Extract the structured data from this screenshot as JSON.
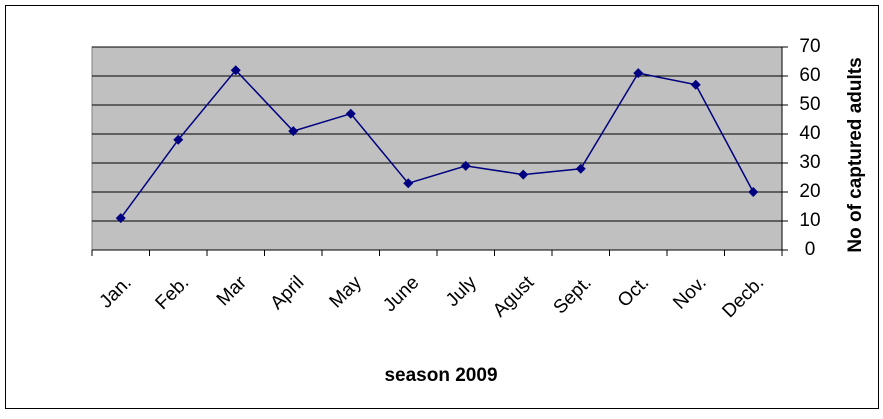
{
  "chart_data": {
    "type": "line",
    "x_label": "season 2009",
    "y_label": "No of captured adults",
    "categories": [
      "Jan.",
      "Feb.",
      "Mar",
      "April",
      "May",
      "June",
      "July",
      "Agust",
      "Sept.",
      "Oct.",
      "Nov.",
      "Decb."
    ],
    "values": [
      11,
      38,
      62,
      41,
      47,
      23,
      29,
      26,
      28,
      61,
      57,
      20
    ],
    "color": "#000080",
    "ylim": [
      0,
      70
    ],
    "yticks": [
      0,
      10,
      20,
      30,
      40,
      50,
      60,
      70
    ],
    "grid": true,
    "y_axis_side": "right"
  }
}
